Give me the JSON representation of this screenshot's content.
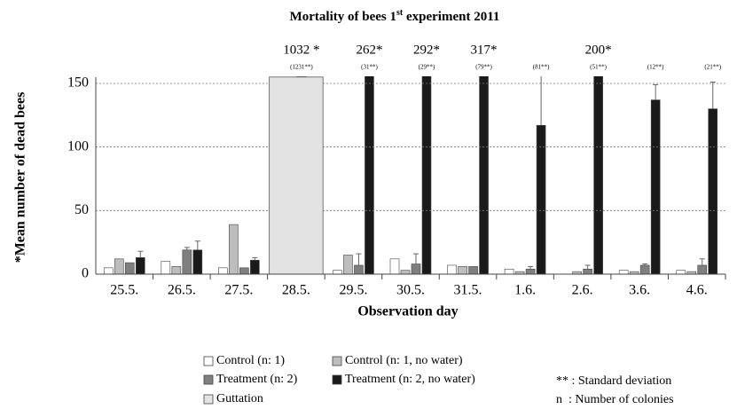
{
  "chart_data": {
    "type": "bar",
    "title": [
      "Mortality of bees 1",
      "st",
      " experiment 2011"
    ],
    "y_label": "*Mean number of dead bees",
    "x_label": "Observation day",
    "categories": [
      "25.5.",
      "26.5.",
      "27.5.",
      "28.5.",
      "29.5.",
      "30.5.",
      "31.5.",
      "1.6.",
      "2.6.",
      "3.6.",
      "4.6."
    ],
    "series": [
      {
        "name": "Control (n: 1)",
        "color": "#ffffff",
        "values": [
          5,
          10,
          5,
          2,
          3,
          12,
          7,
          4,
          0,
          3,
          3
        ]
      },
      {
        "name": "Control (n: 1, no water)",
        "color": "#bdbdbd",
        "values": [
          12,
          6,
          39,
          7,
          15,
          3,
          6,
          2,
          2,
          2,
          2
        ]
      },
      {
        "name": "Treatment (n: 2)",
        "color": "#7f7f7f",
        "values": [
          9,
          19,
          5,
          1032,
          7,
          8,
          6,
          4,
          4,
          7,
          7
        ],
        "errors": [
          null,
          2,
          null,
          1231,
          9,
          8,
          null,
          2,
          3,
          1,
          5
        ],
        "value_labels": [
          null,
          null,
          null,
          "1032 *",
          null,
          null,
          null,
          null,
          null,
          null,
          null
        ],
        "error_labels": [
          null,
          null,
          null,
          "(1231**)",
          null,
          null,
          null,
          null,
          null,
          null,
          null
        ]
      },
      {
        "name": "Treatment (n: 2, no water)",
        "color": "#1a1a1a",
        "values": [
          13,
          19,
          11,
          null,
          262,
          292,
          317,
          117,
          200,
          137,
          130
        ],
        "errors": [
          5,
          7,
          2,
          null,
          31,
          29,
          79,
          81,
          51,
          12,
          21
        ],
        "value_labels": [
          null,
          null,
          null,
          null,
          "262*",
          "292*",
          "317*",
          null,
          "200*",
          null,
          null
        ],
        "error_labels": [
          null,
          null,
          null,
          null,
          "(31**)",
          "(29**)",
          "(79**)",
          "(81**)",
          "(51**)",
          "(12**)",
          "(21**)"
        ]
      }
    ],
    "guttation": {
      "name": "Guttation",
      "color": "#e3e3e3",
      "values": [
        null,
        null,
        null,
        155,
        null,
        null,
        null,
        null,
        null,
        null,
        null
      ]
    },
    "notes": [
      "** : Standard deviation",
      "n  : Number of colonies"
    ],
    "ylim": [
      0,
      155
    ],
    "yticks": [
      0,
      50,
      100,
      150
    ],
    "grid": true
  }
}
